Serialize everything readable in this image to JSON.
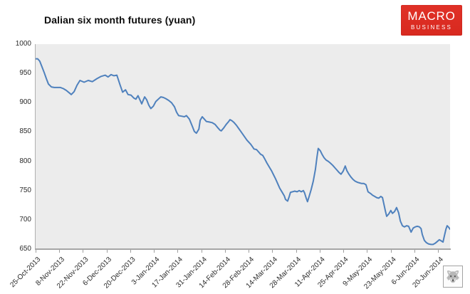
{
  "page": {
    "title": "Dalian six month futures (yuan)"
  },
  "logo": {
    "line1": "MACRO",
    "line2": "BUSINESS",
    "bg_color": "#d8291f",
    "text_color": "#ffffff"
  },
  "footer": {
    "wolf_icon": "🐺"
  },
  "chart_data": {
    "type": "line",
    "title": "Dalian six month futures (yuan)",
    "xlabel": "",
    "ylabel": "",
    "ylim": [
      650,
      1000
    ],
    "y_tick_labels": [
      "1000",
      "950",
      "900",
      "850",
      "800",
      "750",
      "700",
      "650"
    ],
    "y_tick_values": [
      1000,
      950,
      900,
      850,
      800,
      750,
      700,
      650
    ],
    "x_tick_labels": [
      "25-Oct-2013",
      "8-Nov-2013",
      "22-Nov-2013",
      "6-Dec-2013",
      "20-Dec-2013",
      "3-Jan-2014",
      "17-Jan-2014",
      "31-Jan-2014",
      "14-Feb-2014",
      "28-Feb-2014",
      "14-Mar-2014",
      "28-Mar-2014",
      "11-Apr-2014",
      "25-Apr-2014",
      "9-May-2014",
      "23-May-2014",
      "6-Jun-2014",
      "20-Jun-2014"
    ],
    "grid": false,
    "legend_position": "none",
    "plot_bg": "#ececec",
    "line_color": "#4f81bd",
    "axis_color": "#a6a6a6",
    "series": [
      {
        "name": "Dalian six month futures (yuan)",
        "points": [
          [
            0,
            975
          ],
          [
            0.005,
            975
          ],
          [
            0.01,
            971
          ],
          [
            0.015,
            962
          ],
          [
            0.021,
            951
          ],
          [
            0.026,
            941
          ],
          [
            0.031,
            932
          ],
          [
            0.038,
            927
          ],
          [
            0.045,
            926
          ],
          [
            0.052,
            926
          ],
          [
            0.06,
            926
          ],
          [
            0.067,
            924
          ],
          [
            0.074,
            921
          ],
          [
            0.081,
            917
          ],
          [
            0.086,
            914
          ],
          [
            0.093,
            919
          ],
          [
            0.1,
            930
          ],
          [
            0.107,
            938
          ],
          [
            0.117,
            935
          ],
          [
            0.127,
            938
          ],
          [
            0.137,
            936
          ],
          [
            0.148,
            941
          ],
          [
            0.158,
            945
          ],
          [
            0.168,
            947
          ],
          [
            0.175,
            944
          ],
          [
            0.182,
            948
          ],
          [
            0.189,
            946
          ],
          [
            0.196,
            947
          ],
          [
            0.204,
            930
          ],
          [
            0.21,
            918
          ],
          [
            0.217,
            922
          ],
          [
            0.223,
            914
          ],
          [
            0.23,
            913
          ],
          [
            0.237,
            908
          ],
          [
            0.242,
            906
          ],
          [
            0.247,
            912
          ],
          [
            0.253,
            903
          ],
          [
            0.256,
            898
          ],
          [
            0.263,
            910
          ],
          [
            0.268,
            905
          ],
          [
            0.273,
            896
          ],
          [
            0.278,
            890
          ],
          [
            0.284,
            894
          ],
          [
            0.29,
            902
          ],
          [
            0.296,
            906
          ],
          [
            0.302,
            910
          ],
          [
            0.308,
            909
          ],
          [
            0.314,
            907
          ],
          [
            0.321,
            904
          ],
          [
            0.328,
            900
          ],
          [
            0.335,
            893
          ],
          [
            0.34,
            884
          ],
          [
            0.345,
            878
          ],
          [
            0.352,
            877
          ],
          [
            0.359,
            876
          ],
          [
            0.364,
            878
          ],
          [
            0.371,
            872
          ],
          [
            0.378,
            860
          ],
          [
            0.383,
            851
          ],
          [
            0.388,
            848
          ],
          [
            0.394,
            855
          ],
          [
            0.397,
            870
          ],
          [
            0.402,
            876
          ],
          [
            0.407,
            872
          ],
          [
            0.412,
            868
          ],
          [
            0.419,
            867
          ],
          [
            0.426,
            866
          ],
          [
            0.433,
            863
          ],
          [
            0.44,
            857
          ],
          [
            0.445,
            853
          ],
          [
            0.448,
            852
          ],
          [
            0.454,
            857
          ],
          [
            0.46,
            863
          ],
          [
            0.466,
            868
          ],
          [
            0.469,
            871
          ],
          [
            0.474,
            869
          ],
          [
            0.479,
            866
          ],
          [
            0.485,
            861
          ],
          [
            0.49,
            856
          ],
          [
            0.495,
            851
          ],
          [
            0.5,
            846
          ],
          [
            0.505,
            841
          ],
          [
            0.51,
            836
          ],
          [
            0.514,
            833
          ],
          [
            0.519,
            829
          ],
          [
            0.524,
            824
          ],
          [
            0.527,
            821
          ],
          [
            0.533,
            820
          ],
          [
            0.538,
            816
          ],
          [
            0.543,
            812
          ],
          [
            0.548,
            810
          ],
          [
            0.553,
            804
          ],
          [
            0.558,
            797
          ],
          [
            0.564,
            790
          ],
          [
            0.569,
            784
          ],
          [
            0.574,
            777
          ],
          [
            0.579,
            770
          ],
          [
            0.584,
            762
          ],
          [
            0.589,
            754
          ],
          [
            0.595,
            747
          ],
          [
            0.6,
            741
          ],
          [
            0.603,
            735
          ],
          [
            0.608,
            732
          ],
          [
            0.612,
            740
          ],
          [
            0.615,
            747
          ],
          [
            0.62,
            748
          ],
          [
            0.625,
            749
          ],
          [
            0.631,
            748
          ],
          [
            0.636,
            750
          ],
          [
            0.641,
            748
          ],
          [
            0.646,
            750
          ],
          [
            0.649,
            746
          ],
          [
            0.653,
            737
          ],
          [
            0.656,
            731
          ],
          [
            0.66,
            740
          ],
          [
            0.665,
            752
          ],
          [
            0.67,
            766
          ],
          [
            0.675,
            786
          ],
          [
            0.679,
            808
          ],
          [
            0.682,
            822
          ],
          [
            0.687,
            818
          ],
          [
            0.691,
            812
          ],
          [
            0.696,
            806
          ],
          [
            0.701,
            802
          ],
          [
            0.706,
            800
          ],
          [
            0.711,
            797
          ],
          [
            0.717,
            793
          ],
          [
            0.722,
            789
          ],
          [
            0.727,
            785
          ],
          [
            0.732,
            781
          ],
          [
            0.737,
            778
          ],
          [
            0.742,
            783
          ],
          [
            0.747,
            792
          ],
          [
            0.751,
            784
          ],
          [
            0.756,
            778
          ],
          [
            0.761,
            773
          ],
          [
            0.766,
            769
          ],
          [
            0.771,
            766
          ],
          [
            0.777,
            764
          ],
          [
            0.782,
            763
          ],
          [
            0.787,
            762
          ],
          [
            0.792,
            762
          ],
          [
            0.797,
            760
          ],
          [
            0.802,
            748
          ],
          [
            0.808,
            745
          ],
          [
            0.813,
            742
          ],
          [
            0.818,
            740
          ],
          [
            0.823,
            738
          ],
          [
            0.828,
            737
          ],
          [
            0.833,
            740
          ],
          [
            0.837,
            738
          ],
          [
            0.84,
            728
          ],
          [
            0.844,
            715
          ],
          [
            0.847,
            706
          ],
          [
            0.852,
            710
          ],
          [
            0.857,
            716
          ],
          [
            0.861,
            711
          ],
          [
            0.866,
            714
          ],
          [
            0.871,
            721
          ],
          [
            0.876,
            712
          ],
          [
            0.88,
            698
          ],
          [
            0.885,
            690
          ],
          [
            0.89,
            688
          ],
          [
            0.895,
            690
          ],
          [
            0.9,
            689
          ],
          [
            0.906,
            679
          ],
          [
            0.911,
            686
          ],
          [
            0.916,
            688
          ],
          [
            0.921,
            689
          ],
          [
            0.926,
            688
          ],
          [
            0.93,
            685
          ],
          [
            0.933,
            675
          ],
          [
            0.938,
            665
          ],
          [
            0.943,
            661
          ],
          [
            0.948,
            659
          ],
          [
            0.954,
            658
          ],
          [
            0.959,
            658
          ],
          [
            0.964,
            660
          ],
          [
            0.969,
            663
          ],
          [
            0.974,
            666
          ],
          [
            0.979,
            664
          ],
          [
            0.983,
            662
          ],
          [
            0.986,
            672
          ],
          [
            0.99,
            684
          ],
          [
            0.993,
            690
          ],
          [
            0.997,
            687
          ],
          [
            1,
            684
          ]
        ]
      }
    ]
  }
}
